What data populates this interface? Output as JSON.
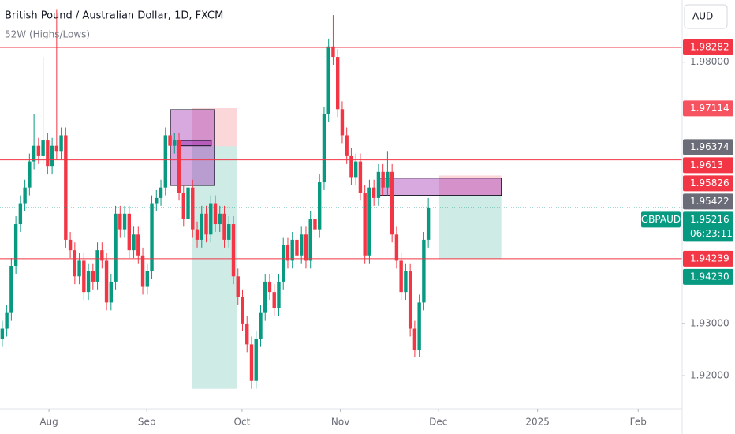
{
  "chart_data": {
    "type": "candlestick",
    "title": "British Pound / Australian Dollar, 1D, FXCM",
    "subtitle": "52W (Highs/Lows)",
    "currency": "AUD",
    "symbol": "GBPAUD",
    "countdown": "06:23:11",
    "up_color": "#089981",
    "down_color": "#f23645",
    "ylim": [
      1.91368,
      1.99188
    ],
    "yticks": [
      {
        "value": 1.98,
        "label": "1.98000"
      },
      {
        "value": 1.93,
        "label": "1.93000"
      },
      {
        "value": 1.92,
        "label": "1.92000"
      }
    ],
    "xlim": [
      -0.5,
      150
    ],
    "xticks": [
      {
        "value": 10.3,
        "label": "Aug"
      },
      {
        "value": 31.9,
        "label": "Sep"
      },
      {
        "value": 52.9,
        "label": "Oct"
      },
      {
        "value": 74.6,
        "label": "Nov"
      },
      {
        "value": 96.2,
        "label": "Dec"
      },
      {
        "value": 118.1,
        "label": "2025"
      },
      {
        "value": 140.3,
        "label": "Feb"
      }
    ],
    "ohlc": [
      [
        1.927,
        1.9305,
        1.9255,
        1.929
      ],
      [
        1.929,
        1.9335,
        1.9275,
        1.932
      ],
      [
        1.932,
        1.9425,
        1.9305,
        1.941
      ],
      [
        1.941,
        1.9505,
        1.9395,
        1.949
      ],
      [
        1.949,
        1.9545,
        1.9475,
        1.953
      ],
      [
        1.953,
        1.9575,
        1.9515,
        1.956
      ],
      [
        1.956,
        1.9625,
        1.9545,
        1.961
      ],
      [
        1.961,
        1.97,
        1.9595,
        1.964
      ],
      [
        1.964,
        1.9655,
        1.9605,
        1.962
      ],
      [
        1.962,
        1.981,
        1.9605,
        1.965
      ],
      [
        1.965,
        1.9665,
        1.9585,
        1.96
      ],
      [
        1.96,
        1.9655,
        1.9585,
        1.964
      ],
      [
        1.964,
        1.99,
        1.9615,
        1.963
      ],
      [
        1.963,
        1.9675,
        1.9615,
        1.966
      ],
      [
        1.966,
        1.9675,
        1.9445,
        1.946
      ],
      [
        1.946,
        1.9475,
        1.9425,
        1.944
      ],
      [
        1.944,
        1.9455,
        1.9375,
        1.939
      ],
      [
        1.939,
        1.9435,
        1.9375,
        1.942
      ],
      [
        1.942,
        1.9435,
        1.9345,
        1.936
      ],
      [
        1.936,
        1.9415,
        1.9345,
        1.94
      ],
      [
        1.94,
        1.9415,
        1.9365,
        1.938
      ],
      [
        1.938,
        1.9455,
        1.9365,
        1.944
      ],
      [
        1.944,
        1.9455,
        1.9405,
        1.942
      ],
      [
        1.942,
        1.9435,
        1.9325,
        1.934
      ],
      [
        1.934,
        1.9395,
        1.9325,
        1.938
      ],
      [
        1.938,
        1.9525,
        1.9365,
        1.951
      ],
      [
        1.951,
        1.9525,
        1.9465,
        1.948
      ],
      [
        1.948,
        1.9525,
        1.9465,
        1.951
      ],
      [
        1.951,
        1.9525,
        1.9425,
        1.944
      ],
      [
        1.944,
        1.9485,
        1.9425,
        1.947
      ],
      [
        1.947,
        1.9485,
        1.9415,
        1.943
      ],
      [
        1.943,
        1.9445,
        1.9355,
        1.937
      ],
      [
        1.937,
        1.9415,
        1.9355,
        1.94
      ],
      [
        1.94,
        1.9545,
        1.9385,
        1.953
      ],
      [
        1.953,
        1.9555,
        1.9515,
        1.954
      ],
      [
        1.954,
        1.9575,
        1.9525,
        1.956
      ],
      [
        1.956,
        1.9675,
        1.9545,
        1.966
      ],
      [
        1.966,
        1.9675,
        1.9625,
        1.964
      ],
      [
        1.964,
        1.9665,
        1.9625,
        1.965
      ],
      [
        1.965,
        1.9665,
        1.9535,
        1.955
      ],
      [
        1.955,
        1.9565,
        1.9485,
        1.95
      ],
      [
        1.95,
        1.9575,
        1.9485,
        1.956
      ],
      [
        1.956,
        1.9575,
        1.9465,
        1.948
      ],
      [
        1.948,
        1.9495,
        1.9445,
        1.946
      ],
      [
        1.946,
        1.9525,
        1.9445,
        1.951
      ],
      [
        1.951,
        1.9525,
        1.9455,
        1.947
      ],
      [
        1.947,
        1.9545,
        1.9455,
        1.953
      ],
      [
        1.953,
        1.9545,
        1.9475,
        1.949
      ],
      [
        1.949,
        1.9525,
        1.9475,
        1.951
      ],
      [
        1.951,
        1.9525,
        1.9445,
        1.946
      ],
      [
        1.946,
        1.9505,
        1.9445,
        1.949
      ],
      [
        1.949,
        1.9505,
        1.9375,
        1.939
      ],
      [
        1.939,
        1.9405,
        1.9335,
        1.935
      ],
      [
        1.935,
        1.9365,
        1.9285,
        1.93
      ],
      [
        1.93,
        1.9315,
        1.9245,
        1.926
      ],
      [
        1.926,
        1.9275,
        1.9175,
        1.919
      ],
      [
        1.919,
        1.9285,
        1.9175,
        1.927
      ],
      [
        1.927,
        1.9335,
        1.9255,
        1.932
      ],
      [
        1.932,
        1.9395,
        1.9305,
        1.938
      ],
      [
        1.938,
        1.9395,
        1.9345,
        1.936
      ],
      [
        1.936,
        1.9375,
        1.9315,
        1.933
      ],
      [
        1.933,
        1.9395,
        1.9315,
        1.938
      ],
      [
        1.938,
        1.9465,
        1.9365,
        1.945
      ],
      [
        1.945,
        1.9465,
        1.9405,
        1.942
      ],
      [
        1.942,
        1.9475,
        1.9405,
        1.946
      ],
      [
        1.946,
        1.9475,
        1.9415,
        1.943
      ],
      [
        1.943,
        1.9485,
        1.9415,
        1.947
      ],
      [
        1.947,
        1.9485,
        1.9405,
        1.942
      ],
      [
        1.942,
        1.9515,
        1.9405,
        1.95
      ],
      [
        1.95,
        1.9515,
        1.9465,
        1.948
      ],
      [
        1.948,
        1.9585,
        1.9465,
        1.957
      ],
      [
        1.957,
        1.9715,
        1.9555,
        1.97
      ],
      [
        1.97,
        1.9845,
        1.9685,
        1.983
      ],
      [
        1.983,
        1.989,
        1.9795,
        1.981
      ],
      [
        1.981,
        1.9825,
        1.9695,
        1.971
      ],
      [
        1.971,
        1.9725,
        1.9645,
        1.966
      ],
      [
        1.966,
        1.9675,
        1.9605,
        1.962
      ],
      [
        1.962,
        1.9635,
        1.9565,
        1.958
      ],
      [
        1.958,
        1.9625,
        1.9565,
        1.961
      ],
      [
        1.961,
        1.9625,
        1.9535,
        1.955
      ],
      [
        1.955,
        1.9565,
        1.9415,
        1.943
      ],
      [
        1.943,
        1.9575,
        1.9415,
        1.956
      ],
      [
        1.956,
        1.9575,
        1.9525,
        1.954
      ],
      [
        1.954,
        1.9605,
        1.9525,
        1.959
      ],
      [
        1.959,
        1.9605,
        1.9545,
        1.956
      ],
      [
        1.956,
        1.963,
        1.9545,
        1.959
      ],
      [
        1.959,
        1.9605,
        1.9455,
        1.947
      ],
      [
        1.947,
        1.9485,
        1.9405,
        1.942
      ],
      [
        1.942,
        1.9435,
        1.9345,
        1.936
      ],
      [
        1.936,
        1.9415,
        1.9345,
        1.94
      ],
      [
        1.94,
        1.9415,
        1.9275,
        1.929
      ],
      [
        1.929,
        1.9305,
        1.9235,
        1.925
      ],
      [
        1.925,
        1.9355,
        1.9235,
        1.934
      ],
      [
        1.934,
        1.9475,
        1.9325,
        1.946
      ],
      [
        1.946,
        1.954,
        1.9445,
        1.9522
      ]
    ],
    "drawings": [
      {
        "x": [
          41.9,
          51.8
        ],
        "y": [
          1.9175,
          1.9639
        ],
        "color": "rgba(8,153,129,0.2)"
      },
      {
        "x": [
          41.9,
          51.8
        ],
        "y": [
          1.9639,
          1.9712
        ],
        "color": "rgba(242,54,69,0.2)"
      },
      {
        "x": [
          37.1,
          46.8
        ],
        "y": [
          1.9564,
          1.9709
        ],
        "color": "rgba(156,39,176,0.4)",
        "border": "#131722"
      },
      {
        "x": [
          38.8,
          46.1
        ],
        "y": [
          1.964,
          1.965
        ],
        "color": "rgba(156,39,176,0.5)",
        "border": "#131722"
      },
      {
        "x": [
          96.4,
          110.1
        ],
        "y": [
          1.9424,
          1.9545
        ],
        "color": "rgba(8,153,129,0.2)"
      },
      {
        "x": [
          96.4,
          110.1
        ],
        "y": [
          1.9545,
          1.9583
        ],
        "color": "rgba(242,54,69,0.2)"
      },
      {
        "x": [
          83,
          110.1
        ],
        "y": [
          1.9545,
          1.9578
        ],
        "color": "rgba(156,39,176,0.4)",
        "border": "#131722"
      }
    ],
    "lines": [
      {
        "price": 1.98282,
        "color": "#f23645",
        "style": "solid"
      },
      {
        "price": 1.9613,
        "color": "#f23645",
        "style": "solid"
      },
      {
        "price": 1.95216,
        "color": "#089981",
        "style": "dotted"
      },
      {
        "price": 1.94239,
        "color": "#f23645",
        "style": "solid"
      }
    ],
    "badges": [
      {
        "price": 1.98282,
        "color": "#f23645"
      },
      {
        "price": 1.97114,
        "color": "#f7525f"
      },
      {
        "price": 1.96374,
        "color": "#6a6d78"
      },
      {
        "price": 1.9613,
        "color": "#f23645"
      },
      {
        "price": 1.95826,
        "color": "#f23645"
      },
      {
        "price": 1.95422,
        "color": "#6a6d78"
      },
      {
        "price": 1.95216,
        "color": "#089981",
        "current": true
      },
      {
        "price": 1.94239,
        "color": "#f23645"
      },
      {
        "price": {
          "value": 1.9423,
          "label": "1.94230"
        },
        "color": "#089981"
      }
    ]
  }
}
